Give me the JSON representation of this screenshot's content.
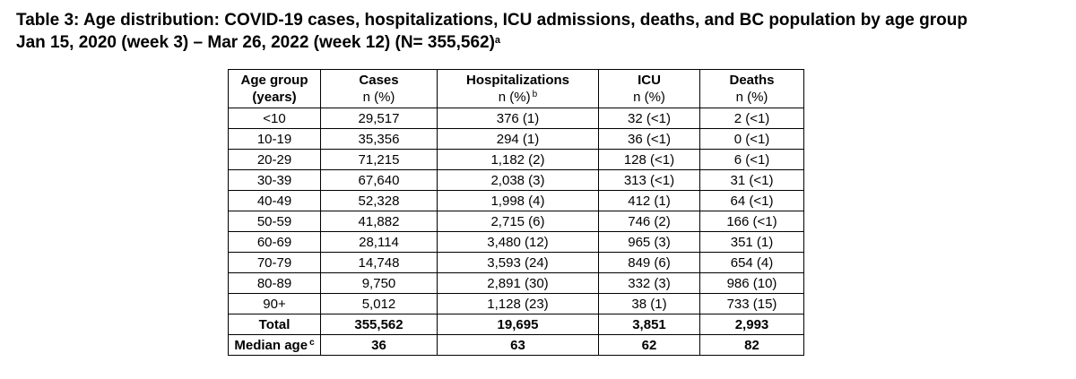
{
  "title": {
    "line1": "Table 3: Age distribution: COVID-19 cases, hospitalizations, ICU admissions, deaths, and BC population by age group",
    "line2": "Jan 15, 2020 (week 3) – Mar 26, 2022 (week 12) (N= 355,562)",
    "line2_sup": "a"
  },
  "table": {
    "headers": [
      {
        "main": "Age group",
        "sub": "(years)",
        "sup": ""
      },
      {
        "main": "Cases",
        "sub": "n (%)",
        "sup": ""
      },
      {
        "main": "Hospitalizations",
        "sub": "n (%)",
        "sup": "b"
      },
      {
        "main": "ICU",
        "sub": "n (%)",
        "sup": ""
      },
      {
        "main": "Deaths",
        "sub": "n (%)",
        "sup": ""
      }
    ],
    "rows": [
      [
        "<10",
        "29,517",
        "376 (1)",
        "32 (<1)",
        "2 (<1)"
      ],
      [
        "10-19",
        "35,356",
        "294 (1)",
        "36 (<1)",
        "0 (<1)"
      ],
      [
        "20-29",
        "71,215",
        "1,182 (2)",
        "128 (<1)",
        "6 (<1)"
      ],
      [
        "30-39",
        "67,640",
        "2,038 (3)",
        "313 (<1)",
        "31 (<1)"
      ],
      [
        "40-49",
        "52,328",
        "1,998 (4)",
        "412 (1)",
        "64 (<1)"
      ],
      [
        "50-59",
        "41,882",
        "2,715 (6)",
        "746 (2)",
        "166 (<1)"
      ],
      [
        "60-69",
        "28,114",
        "3,480 (12)",
        "965 (3)",
        "351 (1)"
      ],
      [
        "70-79",
        "14,748",
        "3,593 (24)",
        "849 (6)",
        "654 (4)"
      ],
      [
        "80-89",
        "9,750",
        "2,891 (30)",
        "332 (3)",
        "986 (10)"
      ],
      [
        "90+",
        "5,012",
        "1,128 (23)",
        "38 (1)",
        "733 (15)"
      ]
    ],
    "total": [
      "Total",
      "355,562",
      "19,695",
      "3,851",
      "2,993"
    ],
    "median": {
      "label": "Median age",
      "label_sup": "c",
      "values": [
        "36",
        "63",
        "62",
        "82"
      ]
    }
  }
}
